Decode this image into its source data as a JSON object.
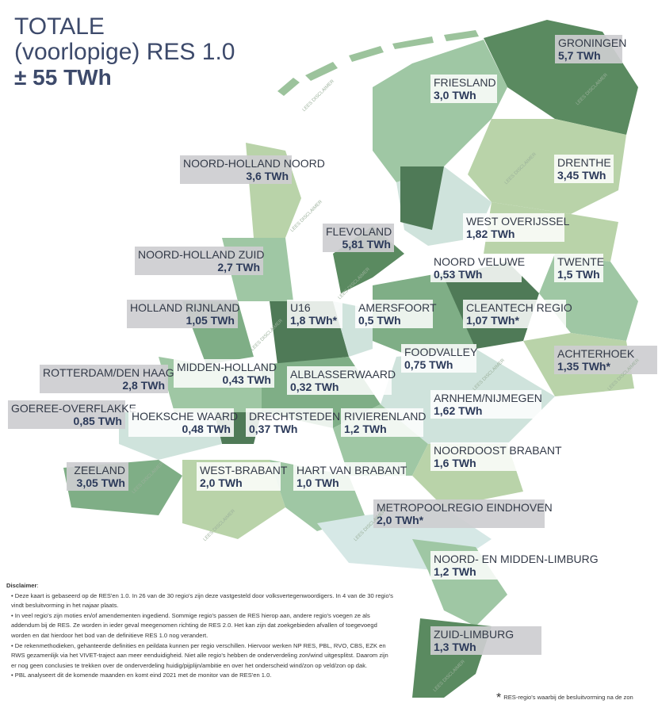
{
  "header": {
    "title_lines": [
      "TOTALE",
      "(voorlopige) RES 1.0"
    ],
    "total": "± 55 TWh"
  },
  "watermark": "LEES DISCLAIMER",
  "regions": [
    {
      "name": "GRONINGEN",
      "value": "5,7 TWh"
    },
    {
      "name": "FRIESLAND",
      "value": "3,0 TWh"
    },
    {
      "name": "NOORD-HOLLAND NOORD",
      "value": "3,6 TWh"
    },
    {
      "name": "DRENTHE",
      "value": "3,45 TWh"
    },
    {
      "name": "WEST OVERIJSSEL",
      "value": "1,82 TWh"
    },
    {
      "name": "FLEVOLAND",
      "value": "5,81 TWh"
    },
    {
      "name": "NOORD-HOLLAND ZUID",
      "value": "2,7 TWh"
    },
    {
      "name": "NOORD VELUWE",
      "value": "0,53 TWh"
    },
    {
      "name": "TWENTE",
      "value": "1,5 TWh"
    },
    {
      "name": "HOLLAND RIJNLAND",
      "value": "1,05 TWh"
    },
    {
      "name": "U16",
      "value": "1,8 TWh*"
    },
    {
      "name": "AMERSFOORT",
      "value": "0,5 TWh"
    },
    {
      "name": "CLEANTECH REGIO",
      "value": "1,07 TWh*"
    },
    {
      "name": "ACHTERHOEK",
      "value": "1,35 TWh*"
    },
    {
      "name": "FOODVALLEY",
      "value": "0,75 TWh"
    },
    {
      "name": "ROTTERDAM/DEN HAAG",
      "value": "2,8 TWh"
    },
    {
      "name": "MIDDEN-HOLLAND",
      "value": "0,43 TWh"
    },
    {
      "name": "ALBLASSERWAARD",
      "value": "0,32 TWh"
    },
    {
      "name": "ARNHEM/NIJMEGEN",
      "value": "1,62 TWh"
    },
    {
      "name": "GOEREE-OVERFLAKKE",
      "value": "0,85 TWh"
    },
    {
      "name": "HOEKSCHE WAARD",
      "value": "0,48 TWh"
    },
    {
      "name": "DRECHTSTEDEN",
      "value": "0,37 TWh"
    },
    {
      "name": "RIVIERENLAND",
      "value": "1,2 TWh"
    },
    {
      "name": "NOORDOOST BRABANT",
      "value": "1,6 TWh"
    },
    {
      "name": "ZEELAND",
      "value": "3,05 TWh"
    },
    {
      "name": "WEST-BRABANT",
      "value": "2,0 TWh"
    },
    {
      "name": "HART VAN BRABANT",
      "value": "1,0 TWh"
    },
    {
      "name": "METROPOOLREGIO EINDHOVEN",
      "value": "2,0 TWh*"
    },
    {
      "name": "NOORD- EN MIDDEN-LIMBURG",
      "value": "1,2 TWh"
    },
    {
      "name": "ZUID-LIMBURG",
      "value": "1,3 TWh"
    }
  ],
  "disclaimer": {
    "heading": "Disclaimer",
    "items": [
      "Deze kaart is gebaseerd op de RES'en 1.0. In 26 van de 30 regio's zijn deze vastgesteld door volksvertegenwoordigers. In 4 van de 30 regio's vindt besluitvorming in het najaar plaats.",
      "In veel regio's zijn moties en/of amendementen ingediend. Sommige regio's passen de RES hierop aan, andere regio's voegen ze als addendum bij de RES. Ze worden in ieder geval meegenomen richting de RES 2.0. Het kan zijn dat zoekgebieden afvallen of toegevoegd worden en dat hierdoor het bod van de definitieve RES 1.0 nog verandert.",
      "De rekenmethodieken, gehanteerde definities en peildata kunnen per regio verschillen. Hiervoor werken NP RES, PBL, RVO, CBS, EZK en RWS gezamenlijk via het VIVET-traject aan meer eenduidigheid. Niet alle regio's hebben de onderverdeling zon/wind uitgesplitst. Daarom zijn er nog geen conclusies te trekken over de onderverdeling huidig/pijplijn/ambitie en over het onderscheid wind/zon op veld/zon op dak.",
      "PBL analyseert dit de komende maanden en komt eind 2021 met de monitor van de RES'en 1.0."
    ]
  },
  "footnote": {
    "mark": "*",
    "text": "RES-regio's waarbij de besluitvorming na de zon"
  }
}
